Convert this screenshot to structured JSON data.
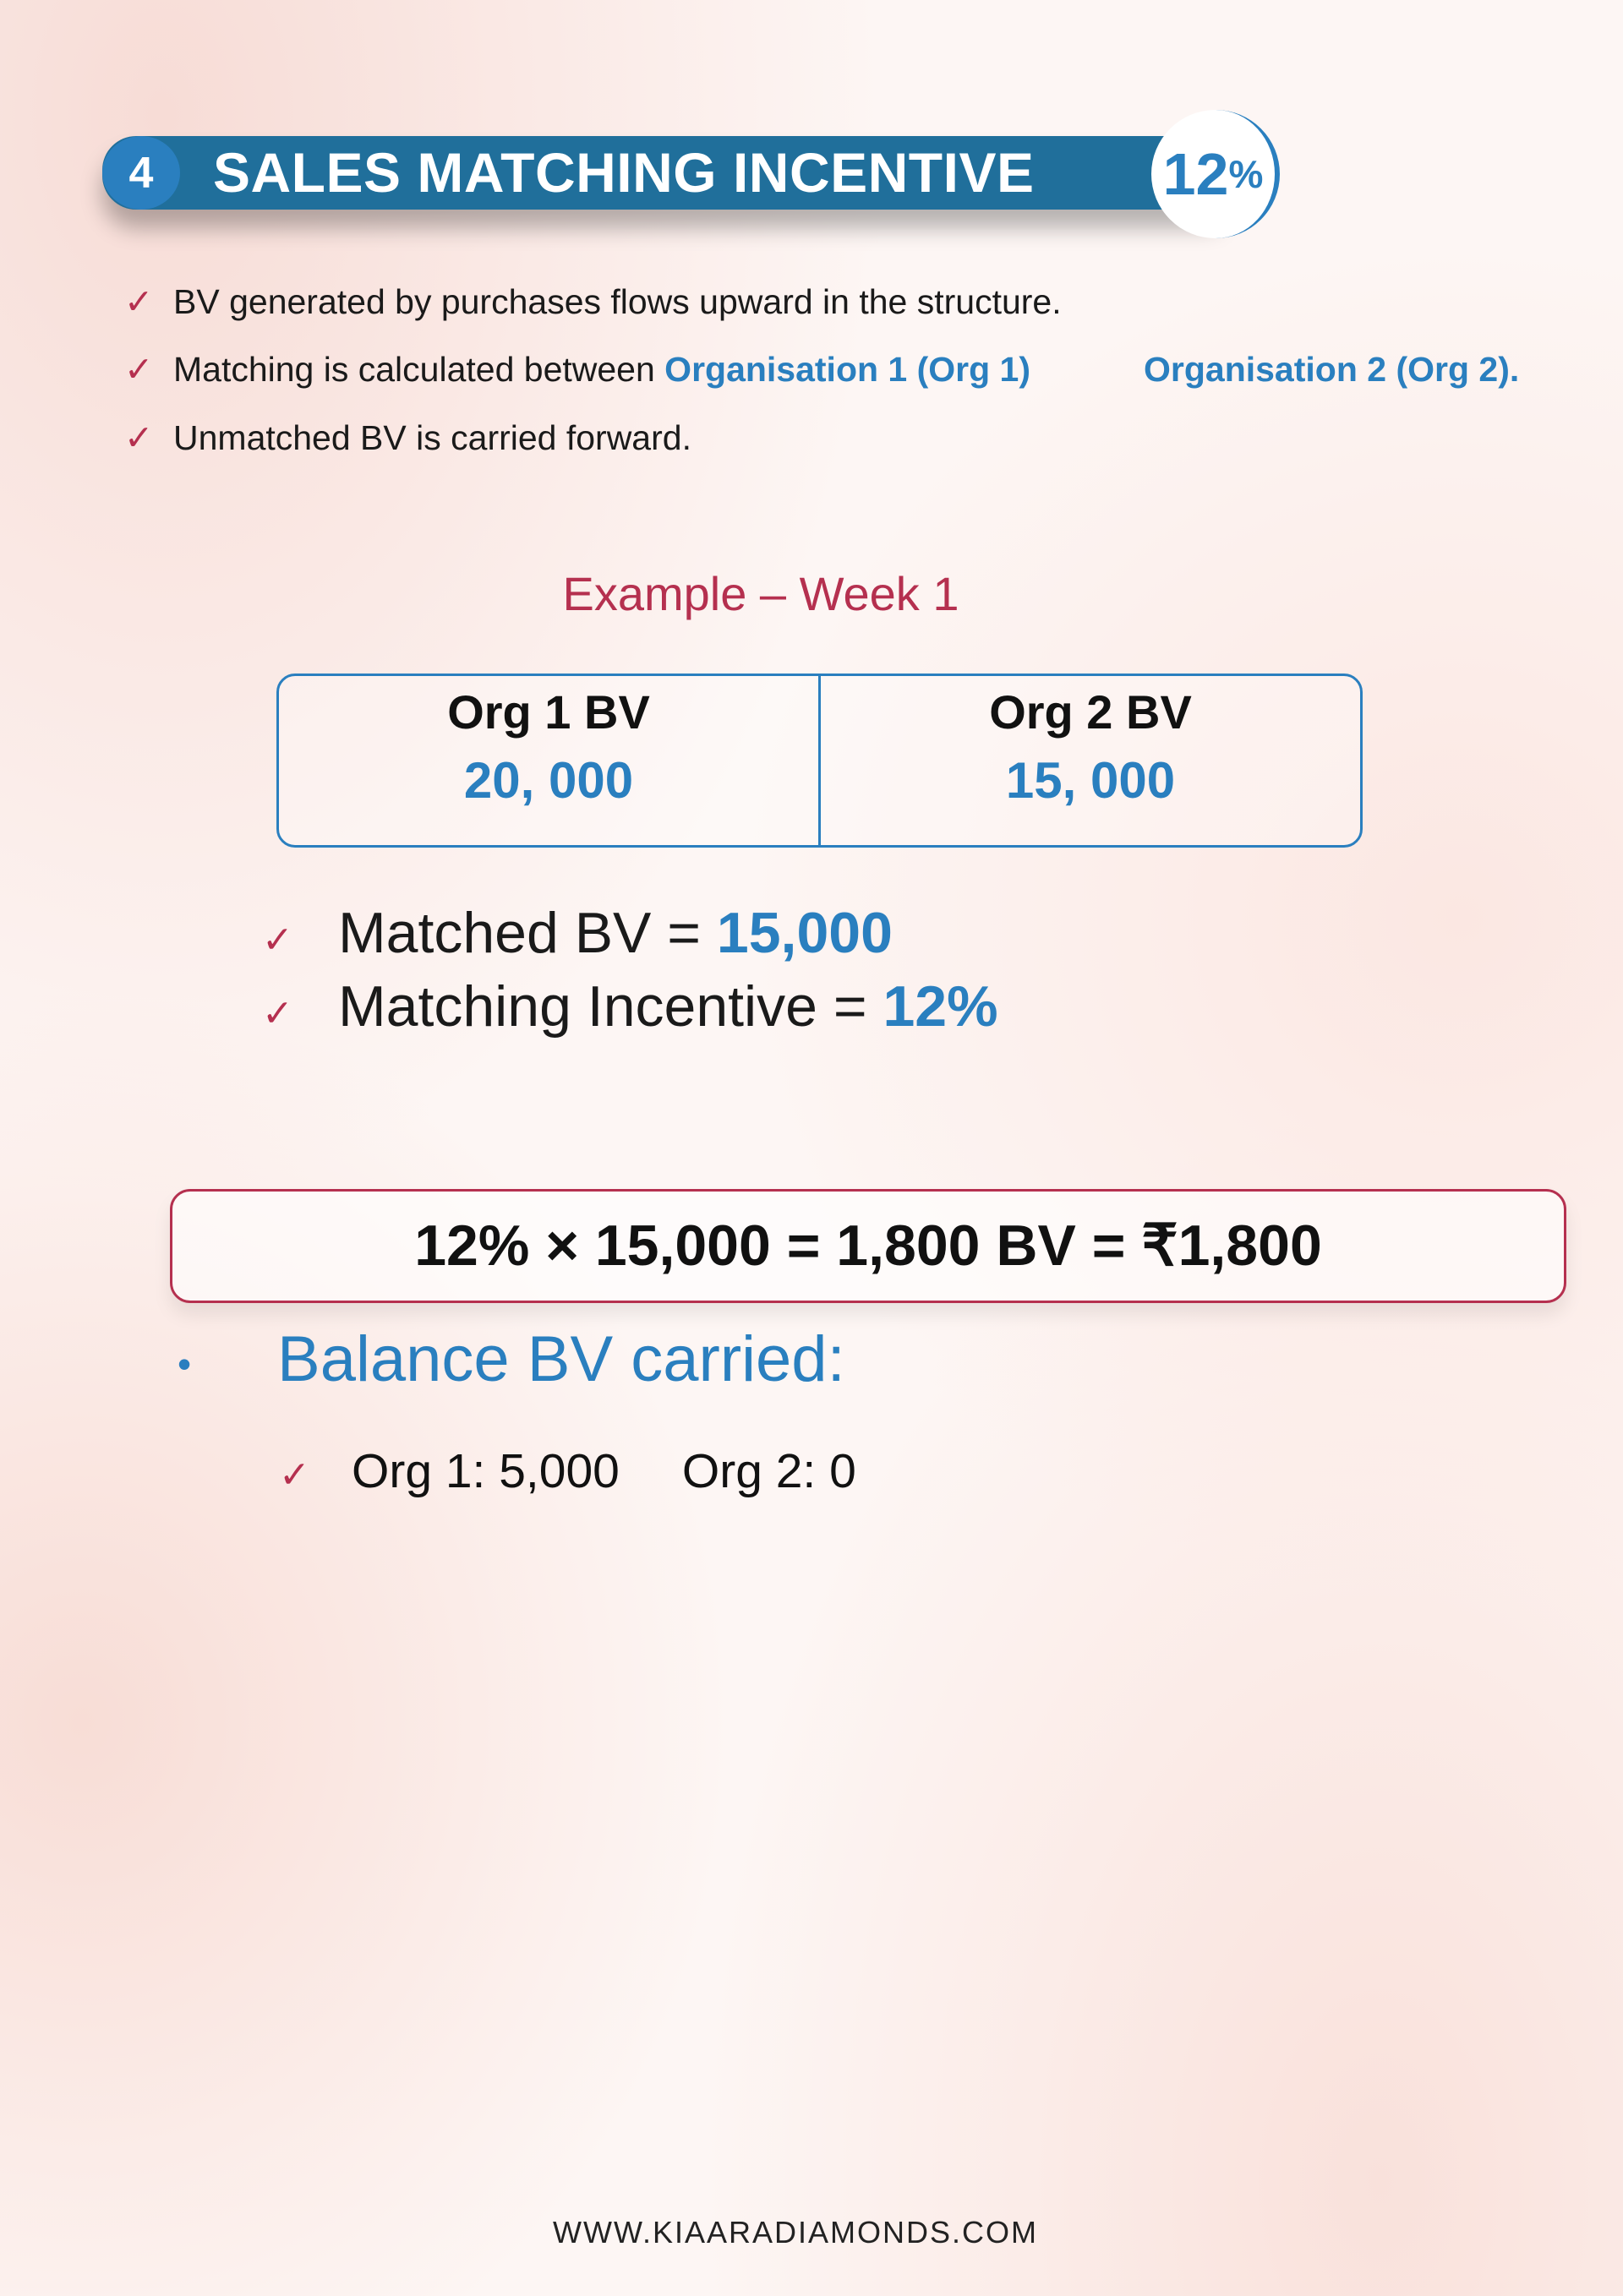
{
  "header": {
    "number": "4",
    "title": "SALES MATCHING INCENTIVE",
    "badge_value": "12",
    "badge_unit": "%"
  },
  "bullets": [
    {
      "icon": "check-icon",
      "text": "BV generated by purchases flows upward in the structure."
    },
    {
      "icon": "check-icon",
      "text": "Matching is calculated between ",
      "org1": "Organisation 1 (Org 1)",
      "org2": "Organisation 2 (Org 2)."
    },
    {
      "icon": "check-icon",
      "text": "Unmatched BV is carried forward."
    }
  ],
  "example": {
    "title": "Example – Week 1",
    "table": [
      {
        "label": "Org 1 BV",
        "value": "20, 000"
      },
      {
        "label": "Org 2 BV",
        "value": "15, 000"
      }
    ]
  },
  "results": [
    {
      "label": "Matched BV = ",
      "value": "15,000"
    },
    {
      "label": "Matching Incentive = ",
      "value": "12%"
    }
  ],
  "formula": "12% × 15,000 = 1,800 BV = ₹1,800",
  "balance": {
    "title": "Balance BV carried:",
    "org1": "Org 1: 5,000",
    "org2": "Org 2: 0"
  },
  "footer": "WWW.KIAARADIAMONDS.COM",
  "colors": {
    "blue": "#2a7fbf",
    "header": "#206f9b",
    "accent": "#b5304f"
  }
}
